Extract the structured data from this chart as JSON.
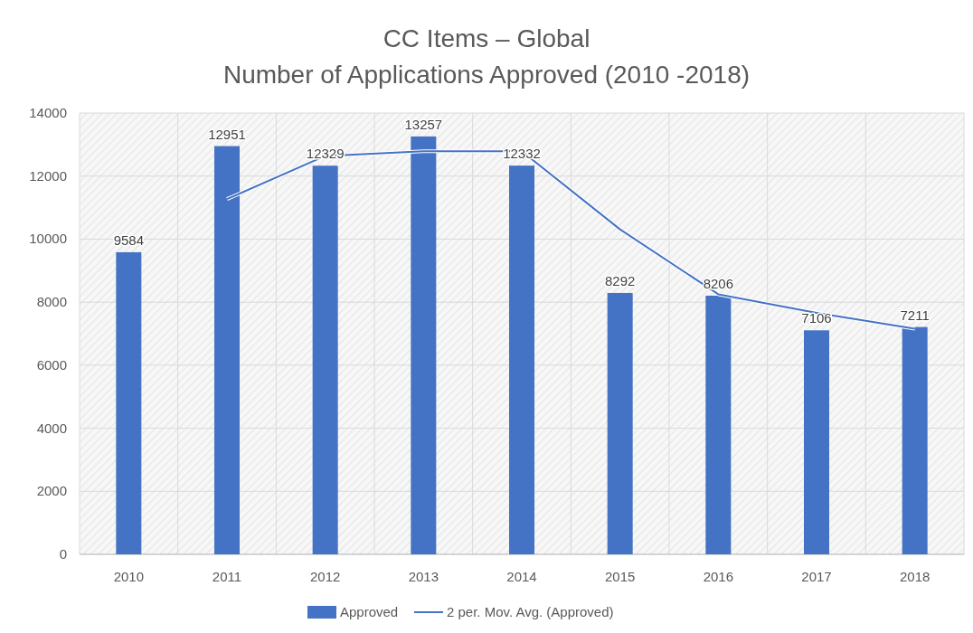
{
  "chart_data": {
    "type": "bar",
    "title": "CC Items – Global",
    "subtitle": "Number of Applications Approved (2010 -2018)",
    "categories": [
      "2010",
      "2011",
      "2012",
      "2013",
      "2014",
      "2015",
      "2016",
      "2017",
      "2018"
    ],
    "series": [
      {
        "name": "Approved",
        "color": "#4472c4",
        "values": [
          9584,
          12951,
          12329,
          13257,
          12332,
          8292,
          8206,
          7106,
          7211
        ],
        "value_labels": [
          "9584",
          "12951",
          "12329",
          "13257",
          "12332",
          "8292",
          "8206",
          "7106",
          "7211"
        ]
      },
      {
        "name": "2 per. Mov. Avg. (Approved)",
        "type": "line",
        "color": "#4472c4",
        "values": [
          null,
          11270,
          12640,
          12790,
          12790,
          10310,
          8250,
          7660,
          7160
        ]
      }
    ],
    "ylim": [
      0,
      14000
    ],
    "yticks": [
      0,
      2000,
      4000,
      6000,
      8000,
      10000,
      12000,
      14000
    ],
    "grid": true,
    "legend": "bottom",
    "line_style": "solid",
    "marker": "none"
  }
}
